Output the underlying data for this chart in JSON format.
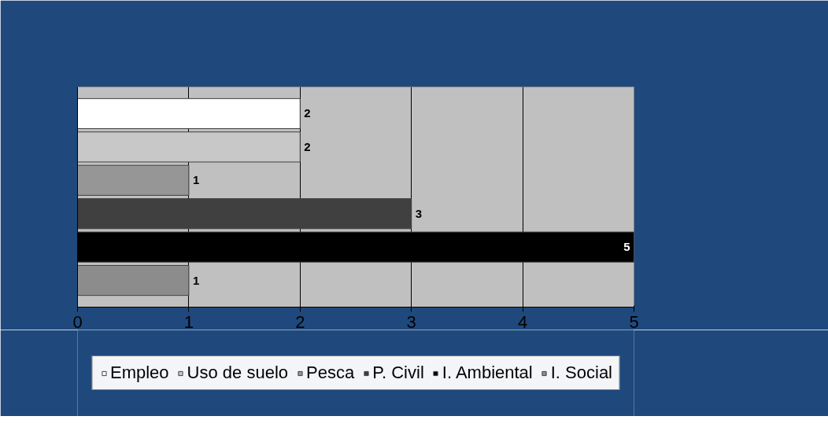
{
  "chart_data": {
    "type": "bar",
    "orientation": "horizontal",
    "categories": [
      null
    ],
    "series": [
      {
        "name": "Empleo",
        "color": "#ffffff",
        "values": [
          2
        ]
      },
      {
        "name": "Uso de suelo",
        "color": "#c8c8c8",
        "values": [
          2
        ]
      },
      {
        "name": "Pesca",
        "color": "#969696",
        "values": [
          1
        ]
      },
      {
        "name": "P. Civil",
        "color": "#404040",
        "values": [
          3
        ]
      },
      {
        "name": "I. Ambiental",
        "color": "#000000",
        "values": [
          5
        ]
      },
      {
        "name": "I. Social",
        "color": "#8c8c8c",
        "values": [
          1
        ]
      }
    ],
    "xlim": [
      0,
      5
    ],
    "xticks": [
      0,
      1,
      2,
      3,
      4,
      5
    ],
    "grid": "x",
    "legend": "bottom",
    "data_labels": true,
    "tick_labels": "x"
  }
}
